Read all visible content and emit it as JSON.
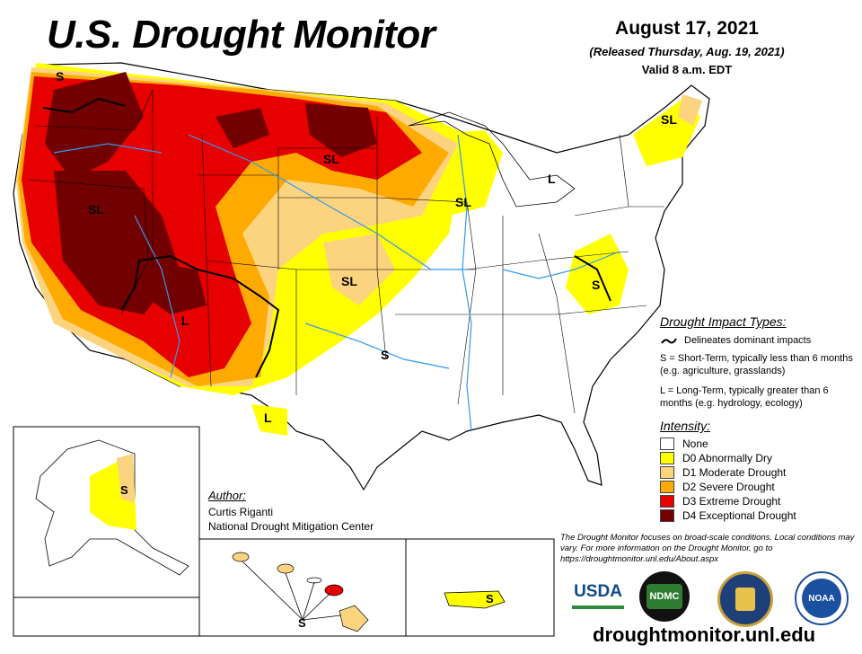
{
  "title": "U.S. Drought Monitor",
  "date": "August 17, 2021",
  "released": "(Released Thursday, Aug. 19, 2021)",
  "valid": "Valid 8 a.m. EDT",
  "impact_types": {
    "header": "Drought Impact Types:",
    "delineates": "Delineates dominant impacts",
    "short_term": "S = Short-Term, typically less than 6 months (e.g. agriculture, grasslands)",
    "long_term": "L = Long-Term, typically greater than 6 months (e.g. hydrology, ecology)"
  },
  "intensity": {
    "header": "Intensity:",
    "levels": [
      {
        "label": "None",
        "color": "#ffffff"
      },
      {
        "label": "D0 Abnormally Dry",
        "color": "#ffff00"
      },
      {
        "label": "D1 Moderate Drought",
        "color": "#fcd37f"
      },
      {
        "label": "D2 Severe Drought",
        "color": "#ffaa00"
      },
      {
        "label": "D3 Extreme Drought",
        "color": "#e60000"
      },
      {
        "label": "D4 Exceptional Drought",
        "color": "#730000"
      }
    ]
  },
  "author": {
    "header": "Author:",
    "name": "Curtis Riganti",
    "org": "National Drought Mitigation Center"
  },
  "note": "The Drought Monitor focuses on broad-scale conditions. Local conditions may vary. For more information on the Drought Monitor, go to https://droughtmonitor.unl.edu/About.aspx",
  "url": "droughtmonitor.unl.edu",
  "map_labels": {
    "s": "S",
    "sl": "SL",
    "l": "L"
  },
  "logos": {
    "usda": "USDA",
    "ndmc": "NDMC",
    "noaa": "NOAA"
  }
}
